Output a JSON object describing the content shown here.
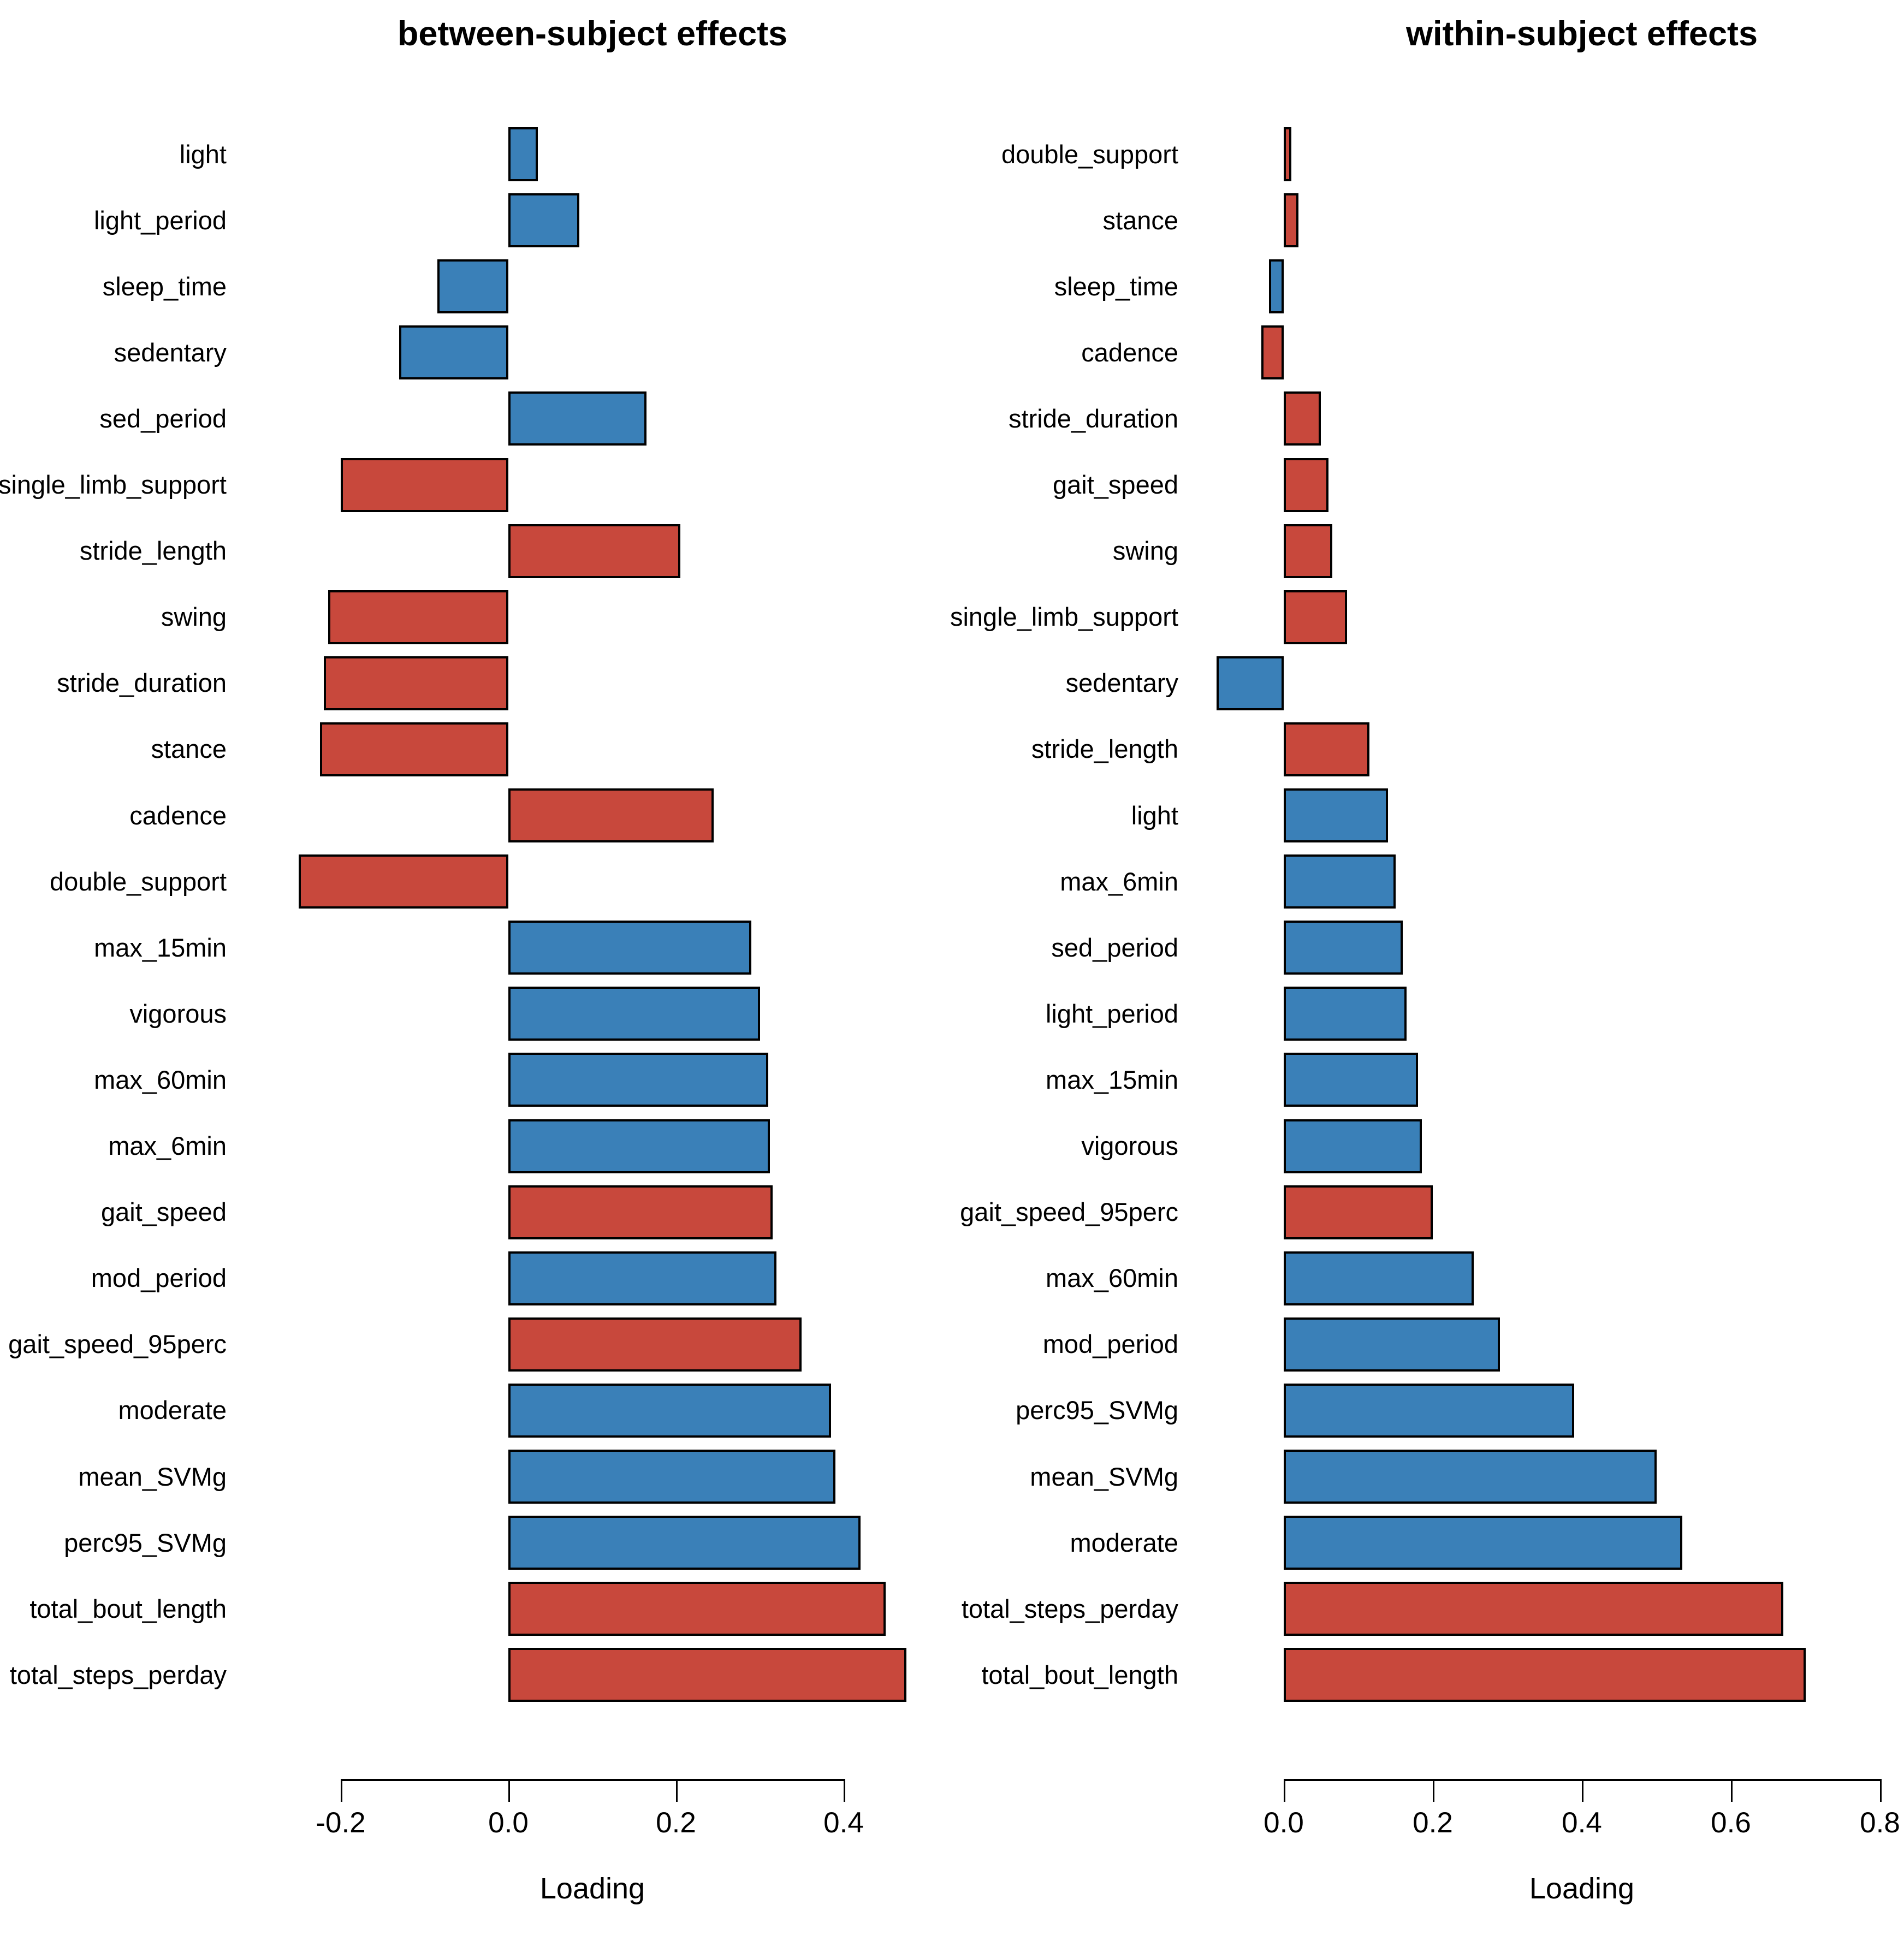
{
  "colors": {
    "blue": "#3A80B8",
    "red": "#C8483C",
    "bar_border": "#000000",
    "axis": "#000000",
    "text": "#000000",
    "background": "#FFFFFF"
  },
  "chart_data": [
    {
      "type": "bar",
      "orientation": "horizontal",
      "title": "between-subject effects",
      "xlabel": "Loading",
      "xlim": [
        -0.27,
        0.48
      ],
      "xticks": [
        -0.2,
        0.0,
        0.2,
        0.4
      ],
      "xtick_labels": [
        "-0.2",
        "0.0",
        "0.2",
        "0.4"
      ],
      "grid": false,
      "legend": "none",
      "categories": [
        "light",
        "light_period",
        "sleep_time",
        "sedentary",
        "sed_period",
        "single_limb_support",
        "stride_length",
        "swing",
        "stride_duration",
        "stance",
        "cadence",
        "double_support",
        "max_15min",
        "vigorous",
        "max_60min",
        "max_6min",
        "gait_speed",
        "mod_period",
        "gait_speed_95perc",
        "moderate",
        "mean_SVMg",
        "perc95_SVMg",
        "total_bout_length",
        "total_steps_perday"
      ],
      "values": [
        0.035,
        0.085,
        -0.085,
        -0.13,
        0.165,
        -0.2,
        0.205,
        -0.215,
        -0.22,
        -0.225,
        0.245,
        -0.25,
        0.29,
        0.3,
        0.31,
        0.312,
        0.315,
        0.32,
        0.35,
        0.385,
        0.39,
        0.42,
        0.45,
        0.475
      ],
      "bar_colors": [
        "blue",
        "blue",
        "blue",
        "blue",
        "blue",
        "red",
        "red",
        "red",
        "red",
        "red",
        "red",
        "red",
        "blue",
        "blue",
        "blue",
        "blue",
        "red",
        "blue",
        "red",
        "blue",
        "blue",
        "blue",
        "red",
        "red"
      ]
    },
    {
      "type": "bar",
      "orientation": "horizontal",
      "title": "within-subject effects",
      "xlabel": "Loading",
      "xlim": [
        -0.1,
        0.8
      ],
      "xticks": [
        0.0,
        0.2,
        0.4,
        0.6,
        0.8
      ],
      "xtick_labels": [
        "0.0",
        "0.2",
        "0.4",
        "0.6",
        "0.8"
      ],
      "grid": false,
      "legend": "none",
      "categories": [
        "double_support",
        "stance",
        "sleep_time",
        "cadence",
        "stride_duration",
        "gait_speed",
        "swing",
        "single_limb_support",
        "sedentary",
        "stride_length",
        "light",
        "max_6min",
        "sed_period",
        "light_period",
        "max_15min",
        "vigorous",
        "gait_speed_95perc",
        "max_60min",
        "mod_period",
        "perc95_SVMg",
        "mean_SVMg",
        "moderate",
        "total_steps_perday",
        "total_bout_length"
      ],
      "values": [
        0.01,
        0.02,
        -0.02,
        -0.03,
        0.05,
        0.06,
        0.065,
        0.085,
        -0.09,
        0.115,
        0.14,
        0.15,
        0.16,
        0.165,
        0.18,
        0.185,
        0.2,
        0.255,
        0.29,
        0.39,
        0.5,
        0.535,
        0.67,
        0.7
      ],
      "bar_colors": [
        "red",
        "red",
        "blue",
        "red",
        "red",
        "red",
        "red",
        "red",
        "blue",
        "red",
        "blue",
        "blue",
        "blue",
        "blue",
        "blue",
        "blue",
        "red",
        "blue",
        "blue",
        "blue",
        "blue",
        "blue",
        "red",
        "red"
      ]
    }
  ]
}
